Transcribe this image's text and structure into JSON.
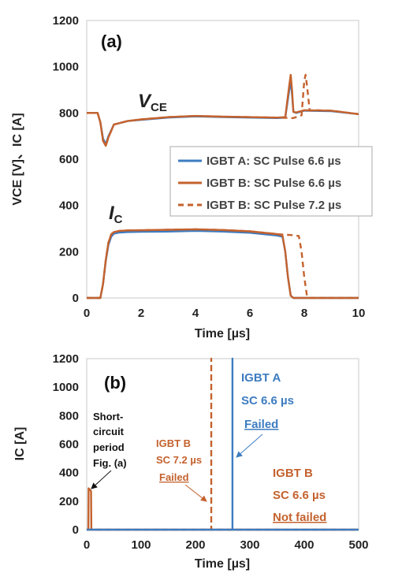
{
  "chart_data": [
    {
      "panel": "(a)",
      "type": "line",
      "xlabel": "Time [µs]",
      "ylabel": "VCE [V]、IC [A]",
      "xlim": [
        0,
        10
      ],
      "ylim": [
        0,
        1200
      ],
      "xticks": [
        "0",
        "2",
        "4",
        "6",
        "8",
        "10"
      ],
      "yticks": [
        "0",
        "200",
        "400",
        "600",
        "800",
        "1000",
        "1200"
      ],
      "grid": false,
      "legend_position": "right",
      "labels": {
        "vce_main": "V",
        "vce_sub": "CE",
        "ic_main": "I",
        "ic_sub": "C"
      },
      "series": [
        {
          "name": "IGBT A: SC Pulse 6.6 µs",
          "quantity": "VCE",
          "color": "#3d7cc0",
          "dash": "solid",
          "x": [
            0,
            0.4,
            0.5,
            0.6,
            0.7,
            0.8,
            1.0,
            1.5,
            2,
            3,
            4,
            5,
            6,
            7,
            7.3,
            7.45,
            7.5,
            7.55,
            7.6,
            7.7,
            8,
            9,
            10
          ],
          "y": [
            800,
            800,
            760,
            690,
            665,
            700,
            750,
            765,
            770,
            780,
            785,
            782,
            780,
            778,
            780,
            900,
            940,
            880,
            805,
            800,
            810,
            808,
            795
          ]
        },
        {
          "name": "IGBT B: SC Pulse 6.6 µs",
          "quantity": "VCE",
          "color": "#c4622e",
          "dash": "solid",
          "x": [
            0,
            0.4,
            0.5,
            0.6,
            0.7,
            0.8,
            1.0,
            1.5,
            2,
            3,
            4,
            5,
            6,
            7,
            7.3,
            7.45,
            7.5,
            7.55,
            7.6,
            7.7,
            8,
            9,
            10
          ],
          "y": [
            800,
            800,
            760,
            680,
            658,
            695,
            750,
            765,
            772,
            782,
            787,
            784,
            782,
            780,
            782,
            920,
            965,
            900,
            805,
            802,
            812,
            810,
            795
          ]
        },
        {
          "name": "IGBT B: SC Pulse 7.2 µs",
          "quantity": "VCE",
          "color": "#c4622e",
          "dash": "dashed",
          "x": [
            0,
            0.4,
            0.5,
            0.6,
            0.7,
            0.8,
            1.0,
            1.5,
            2,
            3,
            4,
            5,
            6,
            7,
            7.6,
            7.9,
            8.0,
            8.05,
            8.1,
            8.2,
            8.4,
            9,
            10
          ],
          "y": [
            800,
            800,
            760,
            680,
            658,
            695,
            750,
            765,
            772,
            782,
            787,
            784,
            782,
            780,
            778,
            790,
            940,
            965,
            920,
            810,
            812,
            810,
            795
          ]
        },
        {
          "name": "IGBT A: SC Pulse 6.6 µs",
          "quantity": "IC",
          "color": "#3d7cc0",
          "dash": "solid",
          "x": [
            0,
            0.5,
            0.6,
            0.7,
            0.8,
            0.9,
            1.0,
            1.2,
            1.5,
            2,
            3,
            4,
            5,
            6,
            7,
            7.2,
            7.3,
            7.4,
            7.5,
            7.6,
            8,
            9,
            10
          ],
          "y": [
            0,
            0,
            60,
            160,
            230,
            265,
            278,
            283,
            285,
            286,
            287,
            290,
            287,
            282,
            270,
            265,
            200,
            90,
            10,
            0,
            0,
            0,
            0
          ]
        },
        {
          "name": "IGBT B: SC Pulse 6.6 µs",
          "quantity": "IC",
          "color": "#c4622e",
          "dash": "solid",
          "x": [
            0,
            0.5,
            0.6,
            0.7,
            0.8,
            0.9,
            1.0,
            1.2,
            1.5,
            2,
            3,
            4,
            5,
            6,
            7,
            7.2,
            7.3,
            7.4,
            7.5,
            7.6,
            8,
            9,
            10
          ],
          "y": [
            0,
            0,
            60,
            165,
            240,
            275,
            285,
            290,
            292,
            293,
            295,
            297,
            294,
            288,
            276,
            270,
            200,
            90,
            10,
            0,
            0,
            0,
            0
          ]
        },
        {
          "name": "IGBT B: SC Pulse 7.2 µs",
          "quantity": "IC",
          "color": "#c4622e",
          "dash": "dashed",
          "x": [
            0,
            0.5,
            0.6,
            0.7,
            0.8,
            0.9,
            1.0,
            1.2,
            1.5,
            2,
            3,
            4,
            5,
            6,
            7,
            7.5,
            7.8,
            7.9,
            8.0,
            8.1,
            8.2,
            9,
            10
          ],
          "y": [
            0,
            0,
            60,
            165,
            240,
            275,
            285,
            290,
            292,
            293,
            295,
            297,
            294,
            288,
            276,
            272,
            268,
            200,
            90,
            10,
            0,
            0,
            0
          ]
        }
      ]
    },
    {
      "panel": "(b)",
      "type": "line",
      "xlabel": "Time [µs]",
      "ylabel": "IC [A]",
      "xlim": [
        0,
        500
      ],
      "ylim": [
        0,
        1200
      ],
      "xticks": [
        "0",
        "100",
        "200",
        "300",
        "400",
        "500"
      ],
      "yticks": [
        "0",
        "200",
        "400",
        "600",
        "800",
        "1000",
        "1200"
      ],
      "grid": false,
      "series": [
        {
          "name": "IGBT B SC 6.6 µs",
          "color": "#c4622e",
          "dash": "solid",
          "x": [
            0,
            3,
            3.5,
            6,
            8,
            8.5,
            500
          ],
          "y": [
            0,
            0,
            290,
            280,
            270,
            0,
            0
          ]
        },
        {
          "name": "IGBT B SC 7.2 µs",
          "color": "#c4622e",
          "dash": "dashed",
          "x": [
            0,
            229,
            229,
            229.01,
            500
          ],
          "y": [
            0,
            0,
            1200,
            0,
            0
          ]
        },
        {
          "name": "IGBT A SC 6.6 µs",
          "color": "#3d7cc0",
          "dash": "solid",
          "x": [
            0,
            268,
            268,
            268.01,
            500
          ],
          "y": [
            0,
            0,
            1200,
            0,
            0
          ]
        }
      ],
      "annotations": {
        "short_circuit": [
          "Short-",
          "circuit",
          "period",
          "Fig. (a)"
        ],
        "igbt_a": [
          "IGBT A",
          "SC 6.6 µs",
          "Failed"
        ],
        "igbt_b72": [
          "IGBT B",
          "SC 7.2 µs",
          "Failed"
        ],
        "igbt_b66": [
          "IGBT B",
          "SC 6.6 µs",
          "Not failed"
        ]
      },
      "colors": {
        "orange": "#c4622e",
        "blue": "#3d7cc0",
        "black": "#111111"
      }
    }
  ]
}
